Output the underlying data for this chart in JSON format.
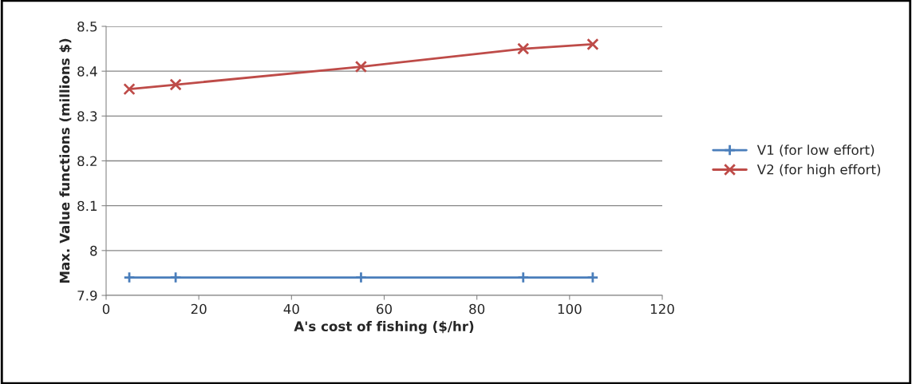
{
  "chart_data": {
    "type": "line",
    "xlabel": "A's cost of fishing ($/hr)",
    "ylabel": "Max. Value functions (millions $)",
    "x": [
      5,
      15,
      55,
      90,
      105
    ],
    "series": [
      {
        "name": "V1 (for low effort)",
        "color": "#4a7ebb",
        "values": [
          7.94,
          7.94,
          7.94,
          7.94,
          7.94
        ],
        "marker": "plus"
      },
      {
        "name": "V2 (for high effort)",
        "color": "#be4b48",
        "values": [
          8.36,
          8.37,
          8.41,
          8.45,
          8.46
        ],
        "marker": "cross"
      }
    ],
    "xlim": [
      0,
      120
    ],
    "xticks": [
      0,
      20,
      40,
      60,
      80,
      100,
      120
    ],
    "ylim": [
      7.9,
      8.5
    ],
    "yticks": [
      7.9,
      8,
      8.1,
      8.2,
      8.3,
      8.4,
      8.5
    ],
    "grid": "y",
    "legend": "right",
    "line_style": "solid"
  }
}
